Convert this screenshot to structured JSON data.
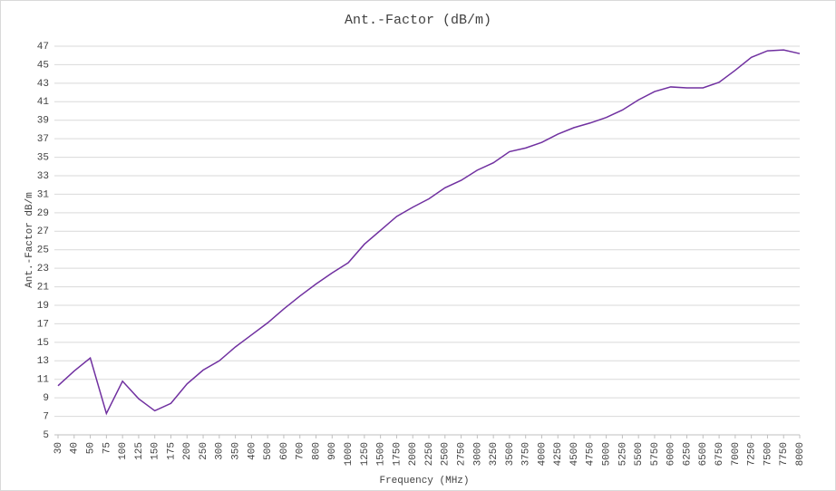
{
  "chart_data": {
    "type": "line",
    "title": "Ant.-Factor (dB/m)",
    "x_label": "Frequency (MHz)",
    "y_label": "Ant.-Factor dB/m",
    "categories": [
      "30",
      "40",
      "50",
      "75",
      "100",
      "125",
      "150",
      "175",
      "200",
      "250",
      "300",
      "350",
      "400",
      "500",
      "600",
      "700",
      "800",
      "900",
      "1000",
      "1250",
      "1500",
      "1750",
      "2000",
      "2250",
      "2500",
      "2750",
      "3000",
      "3250",
      "3500",
      "3750",
      "4000",
      "4250",
      "4500",
      "4750",
      "5000",
      "5250",
      "5500",
      "5750",
      "6000",
      "6250",
      "6500",
      "6750",
      "7000",
      "7250",
      "7500",
      "7750",
      "8000"
    ],
    "series": [
      {
        "name": "Ant.-Factor",
        "color": "#7030a0",
        "values": [
          10.3,
          11.9,
          13.3,
          7.3,
          10.8,
          8.9,
          7.6,
          8.4,
          10.5,
          12.0,
          13.0,
          14.5,
          15.8,
          17.1,
          18.6,
          20.0,
          21.3,
          22.5,
          23.6,
          25.6,
          27.1,
          28.6,
          29.6,
          30.5,
          31.7,
          32.5,
          33.6,
          34.4,
          35.6,
          36.0,
          36.6,
          37.5,
          38.2,
          38.7,
          39.3,
          40.1,
          41.2,
          42.1,
          42.6,
          42.5,
          42.5,
          43.1,
          44.4,
          45.8,
          46.5,
          46.6,
          46.2
        ]
      }
    ],
    "ylim": [
      5,
      47
    ],
    "yticks": [
      5,
      7,
      9,
      11,
      13,
      15,
      17,
      19,
      21,
      23,
      25,
      27,
      29,
      31,
      33,
      35,
      37,
      39,
      41,
      43,
      45,
      47
    ],
    "grid": true
  }
}
